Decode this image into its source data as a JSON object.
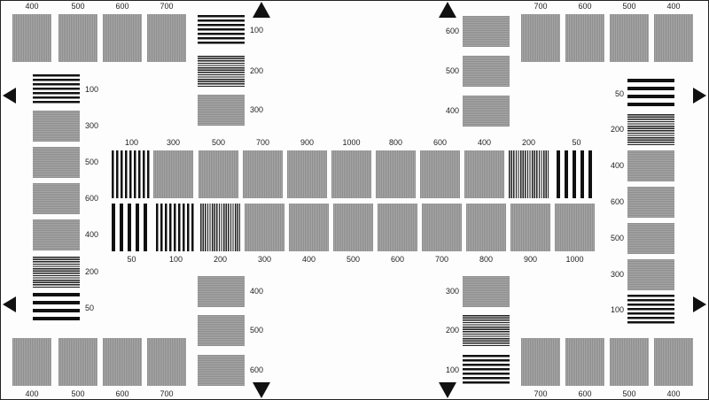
{
  "groups": {
    "top_left_row": {
      "orientation": "vertical",
      "labels": [
        "400",
        "500",
        "600",
        "700"
      ]
    },
    "top_left_column": {
      "orientation": "horizontal",
      "labels": [
        "100",
        "200",
        "300"
      ]
    },
    "left_column": {
      "orientation": "horizontal",
      "labels": [
        "100",
        "300",
        "500",
        "600",
        "400",
        "200",
        "50"
      ]
    },
    "center_top_row": {
      "orientation": "vertical",
      "labels": [
        "100",
        "300",
        "500",
        "700",
        "900",
        "1000",
        "800",
        "600",
        "400",
        "200",
        "50"
      ]
    },
    "center_bottom_row": {
      "orientation": "vertical",
      "labels": [
        "50",
        "100",
        "200",
        "300",
        "400",
        "500",
        "600",
        "700",
        "800",
        "900",
        "1000"
      ]
    },
    "bottom_left_column": {
      "orientation": "horizontal",
      "labels": [
        "400",
        "500",
        "600"
      ]
    },
    "bottom_left_row": {
      "orientation": "vertical",
      "labels": [
        "400",
        "500",
        "600",
        "700"
      ]
    },
    "top_right_column": {
      "orientation": "horizontal",
      "labels": [
        "600",
        "500",
        "400"
      ]
    },
    "top_right_row": {
      "orientation": "vertical",
      "labels": [
        "700",
        "600",
        "500",
        "400"
      ]
    },
    "right_column": {
      "orientation": "horizontal",
      "labels": [
        "50",
        "200",
        "400",
        "600",
        "500",
        "300",
        "100"
      ]
    },
    "bottom_right_column": {
      "orientation": "horizontal",
      "labels": [
        "300",
        "200",
        "100"
      ]
    },
    "bottom_right_row": {
      "orientation": "vertical",
      "labels": [
        "700",
        "600",
        "500",
        "400"
      ]
    }
  },
  "arrows": [
    "up",
    "up",
    "down",
    "down",
    "left",
    "left",
    "right",
    "right"
  ],
  "colors": {
    "bar": "#111111",
    "background": "#fdfdfd",
    "gray_fine": "#9a9a9a"
  }
}
